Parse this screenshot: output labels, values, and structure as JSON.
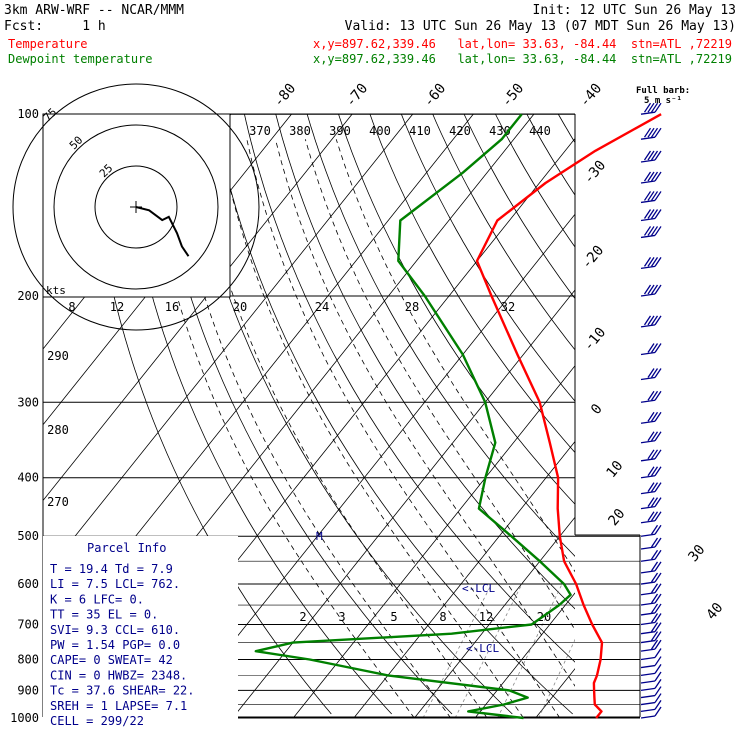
{
  "header": {
    "model": "3km ARW-WRF -- NCAR/MMM",
    "init": "Init: 12 UTC Sun 26 May 13",
    "fcst": "Fcst:     1 h",
    "valid": "Valid: 13 UTC Sun 26 May 13 (07 MDT Sun 26 May 13)",
    "lines": [
      {
        "name": "Temperature",
        "info": "x,y=897.62,339.46   lat,lon= 33.63, -84.44  stn=ATL ,72219",
        "color": "#ff0000"
      },
      {
        "name": "Dewpoint temperature",
        "info": "x,y=897.62,339.46   lat,lon= 33.63, -84.44  stn=ATL ,72219",
        "color": "#008000"
      }
    ]
  },
  "barb_key": {
    "line1": "Full barb:",
    "line2": "5 m s⁻¹"
  },
  "parcel_info": {
    "title": "Parcel Info",
    "rows": [
      "T  =   19.4  Td =   7.9",
      "LI =    7.5  LCL=  762.",
      "K  =      6  LFC=    0.",
      "TT =     35  EL =    0.",
      "SVI=    9.3  CCL=  610.",
      "PW =   1.54  PGP=   0.0",
      "CAPE=     0  SWEAT=  42",
      "CIN =     0  HWBZ= 2348.",
      "Tc =   37.6  SHEAR=  22.",
      "SREH =    1  LAPSE=  7.1",
      "CELL = 299/22"
    ]
  },
  "labels": {
    "lcl": "<-LCL",
    "lcl_parcel": "<-LCL",
    "kts": "kts",
    "m": "M"
  },
  "chart_data": {
    "type": "line",
    "chart_kind": "skew-T log-p sounding",
    "ylabel": "",
    "y_scale": "log",
    "ylim": [
      1000,
      100
    ],
    "pressure_ticks": [
      100,
      200,
      300,
      400,
      500,
      600,
      700,
      800,
      900,
      1000
    ],
    "isotherm_labels": [
      -80,
      -70,
      -60,
      -50,
      -40,
      -30,
      -20,
      -10,
      0,
      10,
      20,
      30,
      40
    ],
    "theta_labels_top": [
      370,
      380,
      390,
      400,
      410,
      420,
      430,
      440
    ],
    "theta_labels_left": [
      290,
      280,
      270
    ],
    "mixing_ratio_labels_upper": [
      8,
      12,
      16,
      20,
      24,
      28,
      32
    ],
    "mixing_ratio_labels_lower": [
      2,
      3,
      5,
      8,
      12,
      20
    ],
    "series": [
      {
        "name": "Temperature",
        "color": "#ff0000",
        "points": [
          [
            1000,
            20
          ],
          [
            975,
            20
          ],
          [
            950,
            18
          ],
          [
            925,
            17
          ],
          [
            900,
            16
          ],
          [
            875,
            15
          ],
          [
            850,
            14.5
          ],
          [
            800,
            13
          ],
          [
            750,
            11
          ],
          [
            700,
            7
          ],
          [
            650,
            3
          ],
          [
            600,
            -1
          ],
          [
            550,
            -6
          ],
          [
            500,
            -10
          ],
          [
            450,
            -14
          ],
          [
            400,
            -18
          ],
          [
            350,
            -24
          ],
          [
            300,
            -31
          ],
          [
            250,
            -41
          ],
          [
            200,
            -53
          ],
          [
            175,
            -60
          ],
          [
            150,
            -62
          ],
          [
            130,
            -59
          ],
          [
            115,
            -55
          ],
          [
            100,
            -49
          ]
        ]
      },
      {
        "name": "Dewpoint temperature",
        "color": "#008000",
        "points": [
          [
            1000,
            8
          ],
          [
            975,
            -2
          ],
          [
            950,
            3
          ],
          [
            925,
            6
          ],
          [
            900,
            2
          ],
          [
            850,
            -20
          ],
          [
            800,
            -35
          ],
          [
            775,
            -45
          ],
          [
            750,
            -40
          ],
          [
            725,
            -15
          ],
          [
            700,
            -3
          ],
          [
            650,
            -1
          ],
          [
            625,
            -0.5
          ],
          [
            600,
            -3
          ],
          [
            550,
            -10
          ],
          [
            500,
            -18
          ],
          [
            450,
            -27
          ],
          [
            400,
            -30
          ],
          [
            350,
            -33
          ],
          [
            300,
            -40
          ],
          [
            250,
            -50
          ],
          [
            200,
            -64
          ],
          [
            175,
            -73
          ],
          [
            150,
            -78
          ],
          [
            125,
            -74
          ],
          [
            110,
            -72
          ],
          [
            100,
            -72
          ]
        ]
      }
    ],
    "hodograph": {
      "rings_kts": [
        25,
        50,
        75
      ],
      "ring_labels": [
        "25",
        "50",
        "75"
      ],
      "trace_kts": [
        [
          0,
          0
        ],
        [
          8,
          -2
        ],
        [
          16,
          -8
        ],
        [
          20,
          -6
        ],
        [
          25,
          -16
        ],
        [
          28,
          -24
        ],
        [
          32,
          -30
        ]
      ]
    },
    "wind_barbs": [
      {
        "p": 1000,
        "spd_ms": 3
      },
      {
        "p": 975,
        "spd_ms": 4
      },
      {
        "p": 950,
        "spd_ms": 5
      },
      {
        "p": 925,
        "spd_ms": 6
      },
      {
        "p": 900,
        "spd_ms": 6
      },
      {
        "p": 875,
        "spd_ms": 6
      },
      {
        "p": 850,
        "spd_ms": 6
      },
      {
        "p": 825,
        "spd_ms": 7
      },
      {
        "p": 800,
        "spd_ms": 7
      },
      {
        "p": 775,
        "spd_ms": 8
      },
      {
        "p": 750,
        "spd_ms": 8
      },
      {
        "p": 725,
        "spd_ms": 8
      },
      {
        "p": 700,
        "spd_ms": 9
      },
      {
        "p": 675,
        "spd_ms": 9
      },
      {
        "p": 650,
        "spd_ms": 10
      },
      {
        "p": 625,
        "spd_ms": 10
      },
      {
        "p": 600,
        "spd_ms": 10
      },
      {
        "p": 575,
        "spd_ms": 11
      },
      {
        "p": 550,
        "spd_ms": 11
      },
      {
        "p": 525,
        "spd_ms": 12
      },
      {
        "p": 500,
        "spd_ms": 12
      },
      {
        "p": 475,
        "spd_ms": 13
      },
      {
        "p": 450,
        "spd_ms": 13
      },
      {
        "p": 425,
        "spd_ms": 14
      },
      {
        "p": 400,
        "spd_ms": 14
      },
      {
        "p": 375,
        "spd_ms": 15
      },
      {
        "p": 350,
        "spd_ms": 15
      },
      {
        "p": 325,
        "spd_ms": 16
      },
      {
        "p": 300,
        "spd_ms": 16
      },
      {
        "p": 275,
        "spd_ms": 17
      },
      {
        "p": 250,
        "spd_ms": 17
      },
      {
        "p": 225,
        "spd_ms": 18
      },
      {
        "p": 200,
        "spd_ms": 18
      },
      {
        "p": 180,
        "spd_ms": 18
      },
      {
        "p": 160,
        "spd_ms": 19
      },
      {
        "p": 150,
        "spd_ms": 19
      },
      {
        "p": 140,
        "spd_ms": 19
      },
      {
        "p": 130,
        "spd_ms": 20
      },
      {
        "p": 120,
        "spd_ms": 20
      },
      {
        "p": 110,
        "spd_ms": 20
      },
      {
        "p": 100,
        "spd_ms": 21
      }
    ]
  }
}
